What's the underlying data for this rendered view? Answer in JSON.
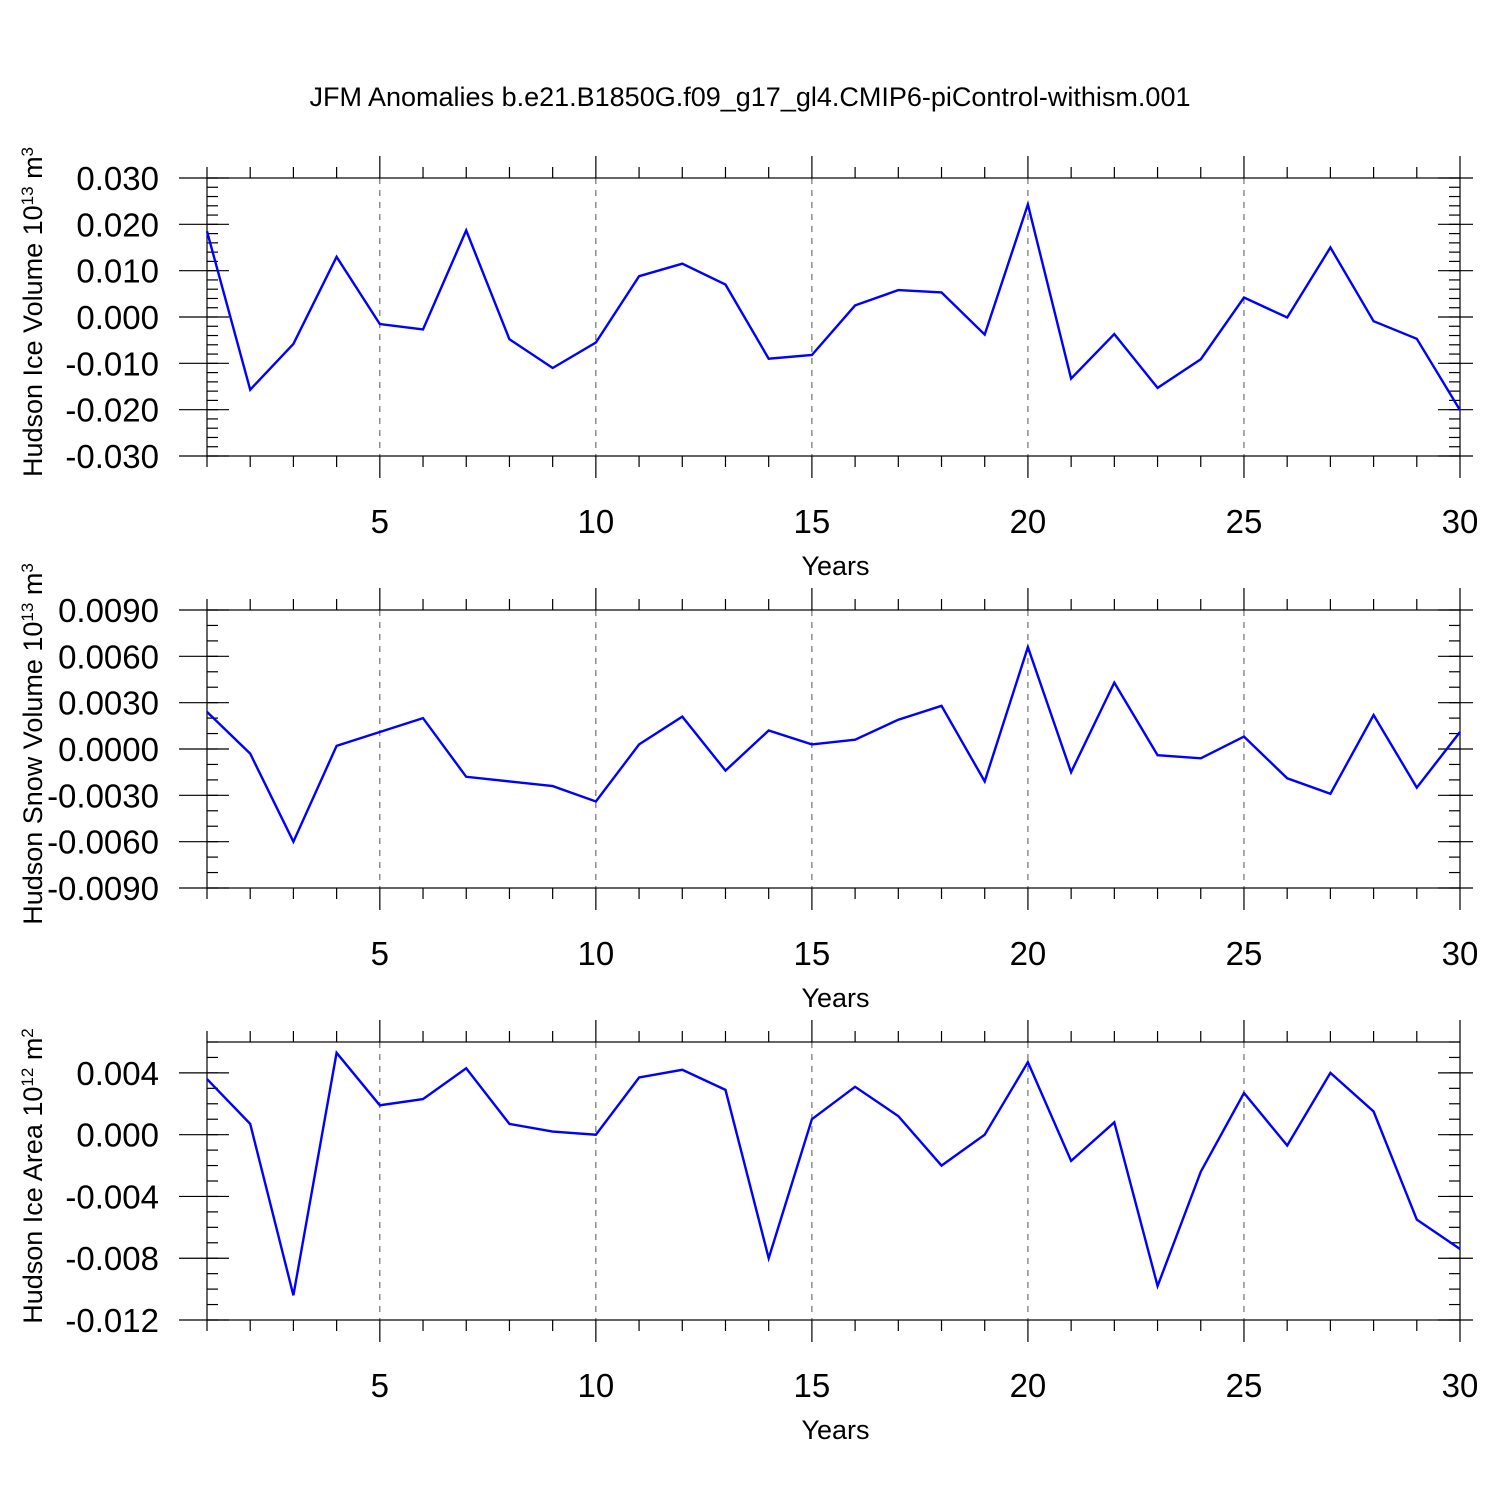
{
  "title": "JFM Anomalies b.e21.B1850G.f09_g17_gl4.CMIP6-piControl-withism.001",
  "chart_data": [
    {
      "type": "line",
      "ylabel": "Hudson Ice Volume 10",
      "ylabel_exp": "13",
      "ylabel_unit": " m",
      "ylabel_unit_exp": "3",
      "xlabel": "Years",
      "xlim": [
        1,
        30
      ],
      "ylim": [
        -0.03,
        0.03
      ],
      "xticks": [
        5,
        10,
        15,
        20,
        25,
        30
      ],
      "xtick_labels": [
        "5",
        "10",
        "15",
        "20",
        "25",
        "30"
      ],
      "yticks": [
        -0.03,
        -0.02,
        -0.01,
        0.0,
        0.01,
        0.02,
        0.03
      ],
      "ytick_labels": [
        "-0.030",
        "-0.020",
        "-0.010",
        "0.000",
        "0.010",
        "0.020",
        "0.030"
      ],
      "yminor_step": 0.002,
      "gridlines": "vertical dashed at major x ticks",
      "color": "#0000ff",
      "x": [
        1,
        2,
        3,
        4,
        5,
        6,
        7,
        8,
        9,
        10,
        11,
        12,
        13,
        14,
        15,
        16,
        17,
        18,
        19,
        20,
        21,
        22,
        23,
        24,
        25,
        26,
        27,
        28,
        29,
        30
      ],
      "values": [
        0.0185,
        -0.0157,
        -0.0058,
        0.013,
        -0.0015,
        -0.0027,
        0.0187,
        -0.0048,
        -0.011,
        -0.0055,
        0.0088,
        0.0115,
        0.007,
        -0.009,
        -0.0082,
        0.0025,
        0.0058,
        0.0053,
        -0.0038,
        0.0243,
        -0.0133,
        -0.0037,
        -0.0153,
        -0.0091,
        0.0042,
        -0.0001,
        0.015,
        -0.0009,
        -0.0047,
        -0.0201
      ]
    },
    {
      "type": "line",
      "ylabel": "Hudson Snow Volume 10",
      "ylabel_exp": "13",
      "ylabel_unit": " m",
      "ylabel_unit_exp": "3",
      "xlabel": "Years",
      "xlim": [
        1,
        30
      ],
      "ylim": [
        -0.009,
        0.009
      ],
      "xticks": [
        5,
        10,
        15,
        20,
        25,
        30
      ],
      "xtick_labels": [
        "5",
        "10",
        "15",
        "20",
        "25",
        "30"
      ],
      "yticks": [
        -0.009,
        -0.006,
        -0.003,
        0.0,
        0.003,
        0.006,
        0.009
      ],
      "ytick_labels": [
        "-0.0090",
        "-0.0060",
        "-0.0030",
        "0.0000",
        "0.0030",
        "0.0060",
        "0.0090"
      ],
      "yminor_step": 0.001,
      "gridlines": "vertical dashed at major x ticks",
      "color": "#0000ff",
      "x": [
        1,
        2,
        3,
        4,
        5,
        6,
        7,
        8,
        9,
        10,
        11,
        12,
        13,
        14,
        15,
        16,
        17,
        18,
        19,
        20,
        21,
        22,
        23,
        24,
        25,
        26,
        27,
        28,
        29,
        30
      ],
      "values": [
        0.0024,
        -0.0003,
        -0.006,
        0.0002,
        0.0011,
        0.002,
        -0.0018,
        -0.0021,
        -0.0024,
        -0.0034,
        0.0003,
        0.0021,
        -0.0014,
        0.0012,
        0.0003,
        0.0006,
        0.0019,
        0.0028,
        -0.0021,
        0.0066,
        -0.0015,
        0.0043,
        -0.0004,
        -0.0006,
        0.0008,
        -0.0019,
        -0.0029,
        0.0022,
        -0.0025,
        0.0011
      ]
    },
    {
      "type": "line",
      "ylabel": "Hudson Ice Area 10",
      "ylabel_exp": "12",
      "ylabel_unit": " m",
      "ylabel_unit_exp": "2",
      "xlabel": "Years",
      "xlim": [
        1,
        30
      ],
      "ylim": [
        -0.012,
        0.006
      ],
      "xticks": [
        5,
        10,
        15,
        20,
        25,
        30
      ],
      "xtick_labels": [
        "5",
        "10",
        "15",
        "20",
        "25",
        "30"
      ],
      "yticks": [
        -0.012,
        -0.008,
        -0.004,
        0.0,
        0.004
      ],
      "ytick_labels": [
        "-0.012",
        "-0.008",
        "-0.004",
        "0.000",
        "0.004"
      ],
      "yminor_step": 0.001,
      "gridlines": "vertical dashed at major x ticks",
      "color": "#0000ff",
      "x": [
        1,
        2,
        3,
        4,
        5,
        6,
        7,
        8,
        9,
        10,
        11,
        12,
        13,
        14,
        15,
        16,
        17,
        18,
        19,
        20,
        21,
        22,
        23,
        24,
        25,
        26,
        27,
        28,
        29,
        30
      ],
      "values": [
        0.0036,
        0.0007,
        -0.0104,
        0.0053,
        0.0019,
        0.0023,
        0.0043,
        0.0007,
        0.0002,
        0.0,
        0.0037,
        0.0042,
        0.0029,
        -0.008,
        0.001,
        0.0031,
        0.0012,
        -0.002,
        0.0,
        0.0047,
        -0.0017,
        0.0008,
        -0.0098,
        -0.0024,
        0.0027,
        -0.0007,
        0.004,
        0.0015,
        -0.0055,
        -0.0074
      ]
    }
  ]
}
